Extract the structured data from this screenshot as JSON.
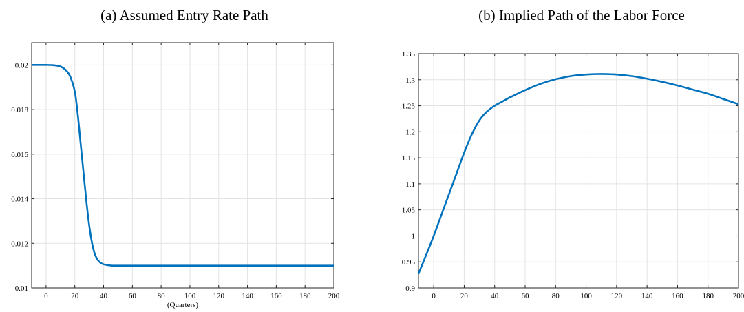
{
  "chart_data": [
    {
      "type": "line",
      "title": "(a) Assumed Entry Rate Path",
      "xlabel": "(Quarters)",
      "ylabel": "",
      "xlim": [
        -10,
        200
      ],
      "ylim": [
        0.01,
        0.021
      ],
      "xticks": [
        0,
        20,
        40,
        60,
        80,
        100,
        120,
        140,
        160,
        180,
        200
      ],
      "yticks": [
        0.01,
        0.012,
        0.014,
        0.016,
        0.018,
        0.02
      ],
      "ytick_labels": [
        "0.01",
        "0.012",
        "0.014",
        "0.016",
        "0.018",
        "0.02"
      ],
      "grid": true,
      "line_color": "#0072bd",
      "series": [
        {
          "x": [
            -10,
            0,
            5,
            10,
            14,
            17,
            20,
            22,
            24,
            26,
            28,
            30,
            32,
            34,
            36,
            38,
            40,
            43,
            46,
            50,
            55,
            60,
            80,
            100,
            120,
            140,
            160,
            180,
            200
          ],
          "values": [
            0.02,
            0.02,
            0.01999,
            0.01993,
            0.01975,
            0.01945,
            0.0188,
            0.0178,
            0.0165,
            0.0152,
            0.0139,
            0.0128,
            0.012,
            0.0115,
            0.01125,
            0.01112,
            0.01106,
            0.01102,
            0.011,
            0.011,
            0.011,
            0.011,
            0.011,
            0.011,
            0.011,
            0.011,
            0.011,
            0.011,
            0.011
          ]
        }
      ]
    },
    {
      "type": "line",
      "title": "(b) Implied Path of the Labor Force",
      "xlabel": "",
      "ylabel": "",
      "xlim": [
        -10,
        200
      ],
      "ylim": [
        0.9,
        1.35
      ],
      "xticks": [
        0,
        20,
        40,
        60,
        80,
        100,
        120,
        140,
        160,
        180,
        200
      ],
      "yticks": [
        0.9,
        0.95,
        1,
        1.05,
        1.1,
        1.15,
        1.2,
        1.25,
        1.3,
        1.35
      ],
      "ytick_labels": [
        "0.9",
        "0.95",
        "1",
        "1.05",
        "1.1",
        "1.15",
        "1.2",
        "1.25",
        "1.3",
        "1.35"
      ],
      "grid": true,
      "line_color": "#0072bd",
      "series": [
        {
          "x": [
            -10,
            -5,
            0,
            5,
            10,
            15,
            20,
            25,
            30,
            35,
            40,
            45,
            50,
            60,
            70,
            80,
            90,
            100,
            110,
            120,
            130,
            140,
            150,
            160,
            170,
            180,
            190,
            200
          ],
          "values": [
            0.927,
            0.963,
            1.0,
            1.04,
            1.08,
            1.12,
            1.16,
            1.195,
            1.222,
            1.239,
            1.25,
            1.258,
            1.266,
            1.28,
            1.292,
            1.301,
            1.307,
            1.31,
            1.311,
            1.31,
            1.307,
            1.302,
            1.296,
            1.289,
            1.281,
            1.273,
            1.263,
            1.253
          ]
        }
      ]
    }
  ]
}
